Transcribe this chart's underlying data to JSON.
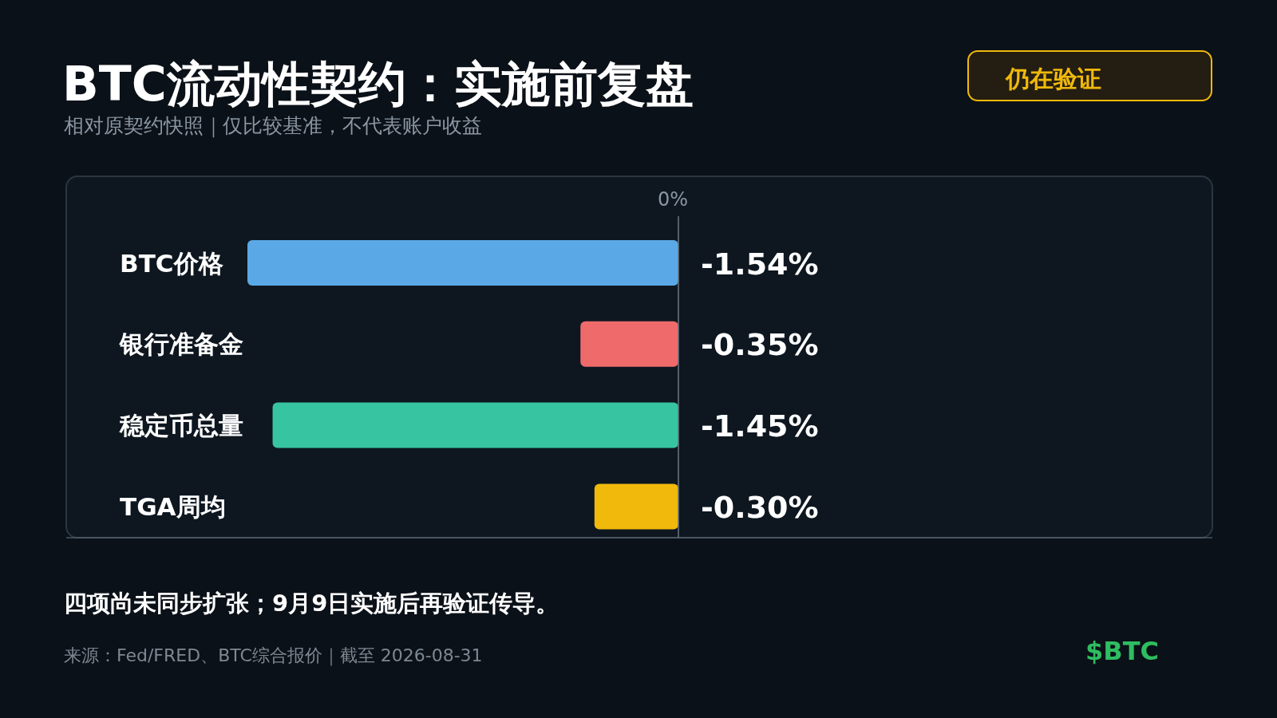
{
  "chart_data": {
    "type": "bar",
    "orientation": "horizontal",
    "title": "BTC流动性契约：实施前复盘",
    "subtitle": "相对原契约快照｜仅比较基准，不代表账户收益",
    "categories": [
      "BTC价格",
      "银行准备金",
      "稳定币总量",
      "TGA周均"
    ],
    "values": [
      -1.54,
      -0.35,
      -1.45,
      -0.3
    ],
    "value_labels": [
      "-1.54%",
      "-0.35%",
      "-1.45%",
      "-0.30%"
    ],
    "colors": [
      "#5aa9e6",
      "#ef6b6b",
      "#36c5a0",
      "#f0b90b"
    ],
    "annotations": [
      "0%",
      "仍在验证",
      "四项尚未同步扩张；9月9日实施后再验证传导。",
      "来源：Fed/FRED、BTC综合报价｜截至 2026-08-31",
      "$BTC"
    ],
    "grid": false
  }
}
